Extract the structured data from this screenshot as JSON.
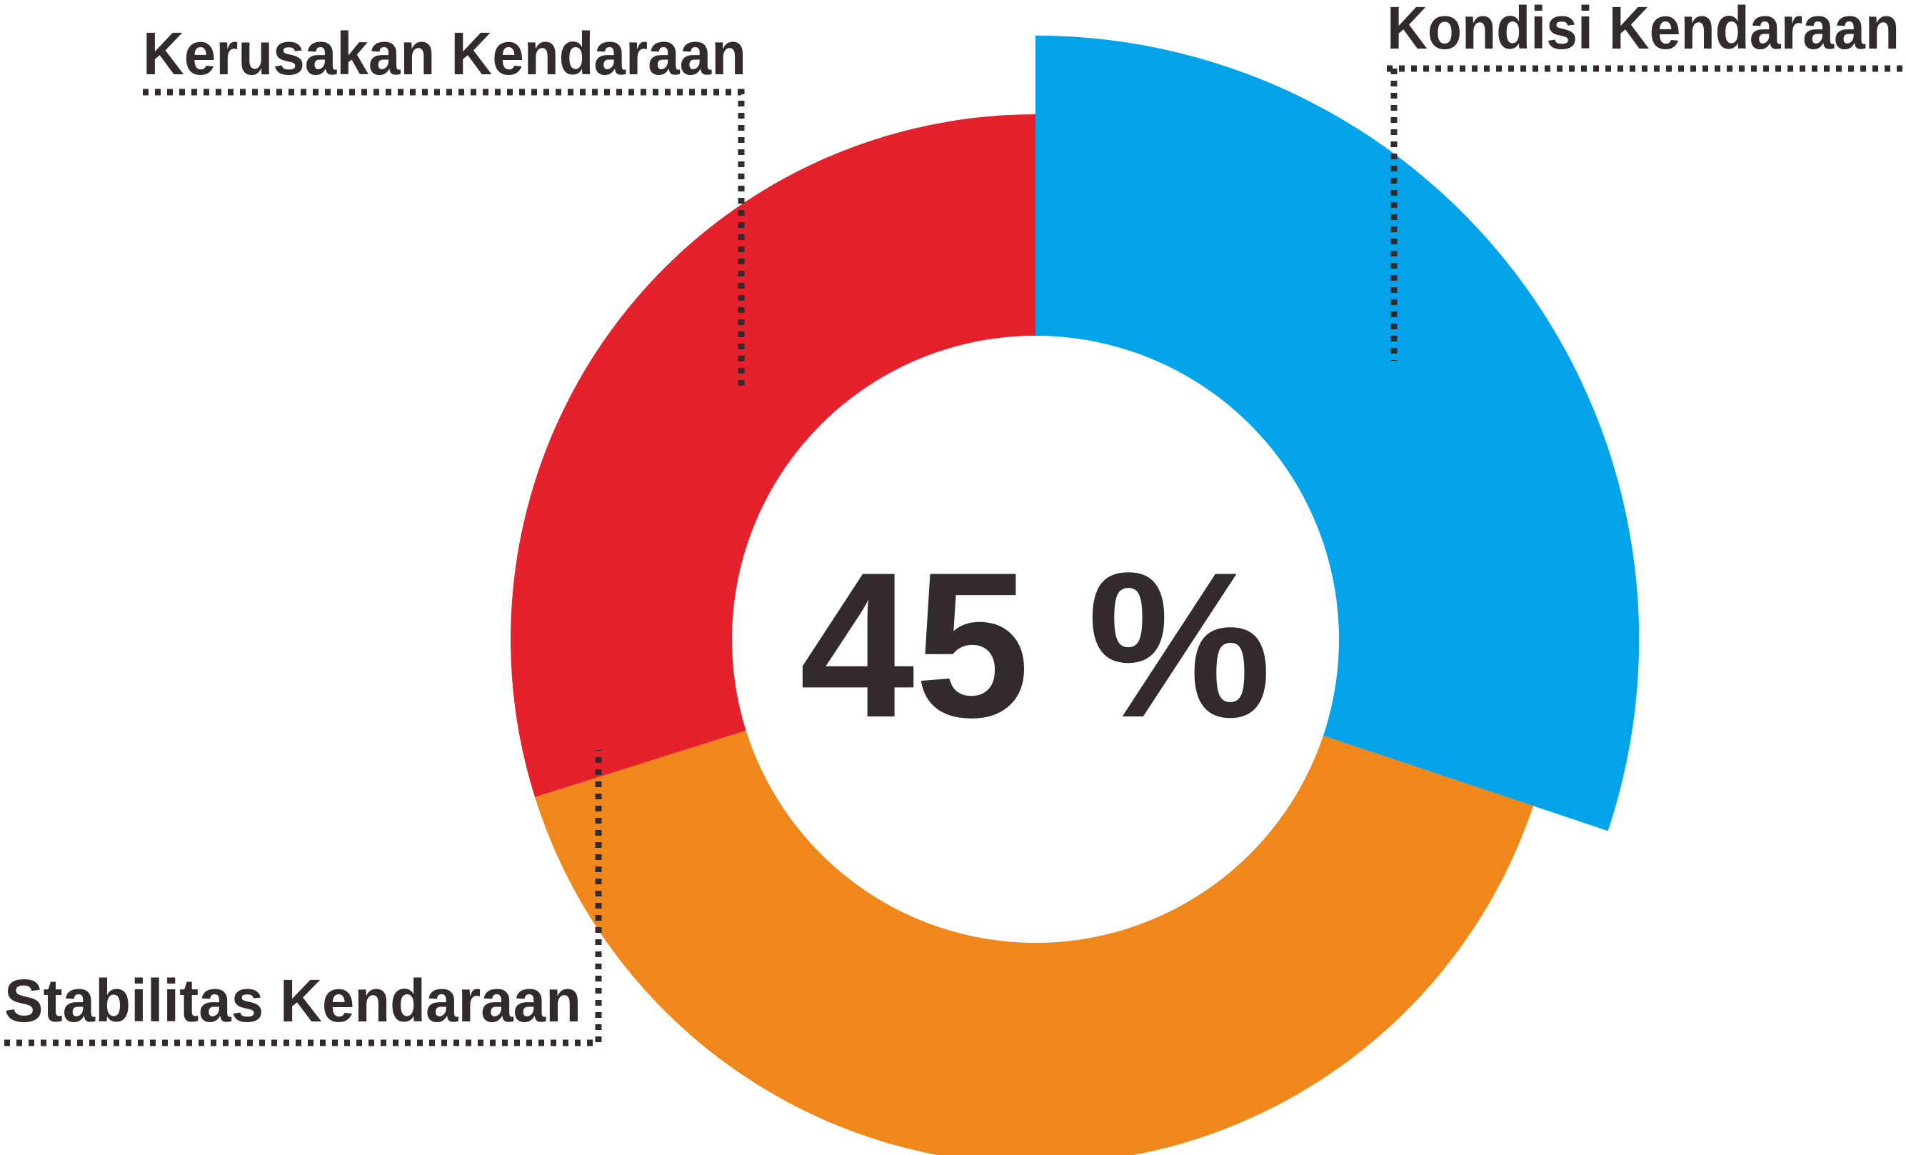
{
  "chart_data": {
    "type": "pie",
    "style": "donut",
    "center_label": "45 %",
    "slices": [
      {
        "label": "Kondisi Kendaraan",
        "color": "#02a3e8",
        "outer_scale": 1.15
      },
      {
        "label": "Stabilitas Kendaraan",
        "color": "#ef871b",
        "outer_scale": 1.0
      },
      {
        "label": "Kerusakan Kendaraan",
        "color": "#e5212b",
        "outer_scale": 1.0
      }
    ]
  }
}
